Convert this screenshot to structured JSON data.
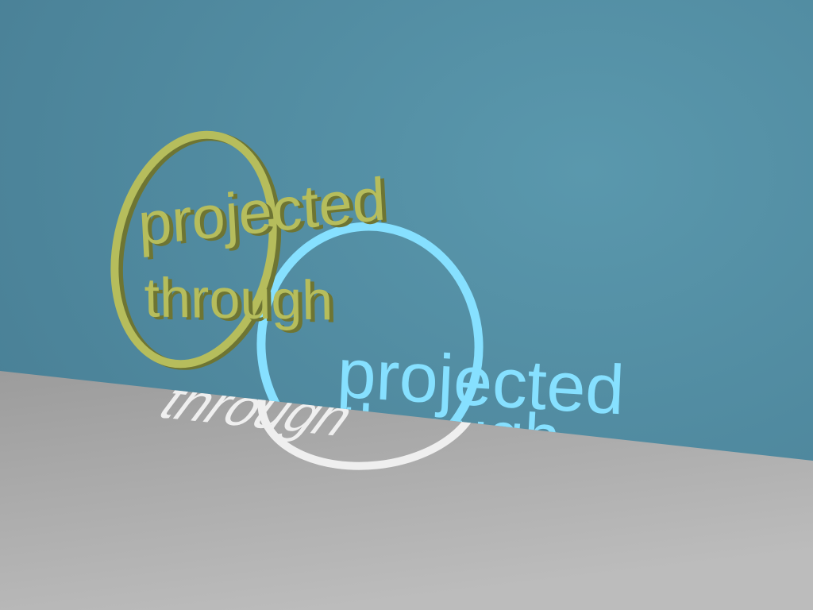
{
  "scene": {
    "object_text": {
      "line1": "projected",
      "line2": "through"
    },
    "projected_text": {
      "line1": "projected",
      "line2": "through"
    }
  },
  "colors": {
    "wall": "#4e8aa0",
    "wall_light": "#5897ac",
    "floor": "#a6a6a6",
    "floor_light": "#bdbdbd",
    "object": "#b6bd5c",
    "object_shadow": "#6e7533",
    "projection": "#86e0ff",
    "projection_on_floor": "#ececec"
  }
}
